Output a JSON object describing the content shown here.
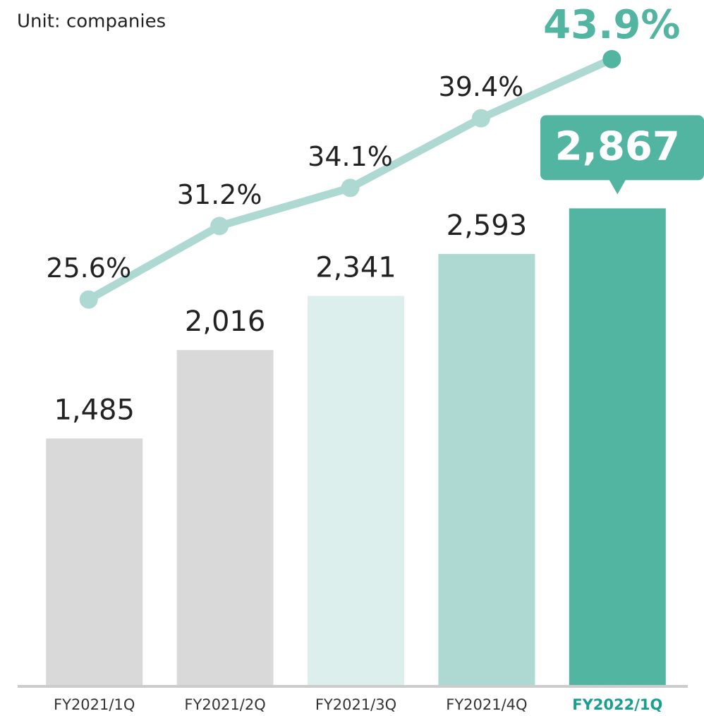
{
  "chart_data": {
    "type": "bar",
    "subtitle": "Unit: companies",
    "categories": [
      "FY2021/1Q",
      "FY2021/2Q",
      "FY2021/3Q",
      "FY2021/4Q",
      "FY2022/1Q"
    ],
    "ylim": [
      0,
      4000
    ],
    "y2lim": [
      -3.8,
      46.9
    ],
    "series": [
      {
        "type": "bar",
        "colors": [
          "#d9d9d9",
          "#d9d9d9",
          "#ddefec",
          "#aed9d3",
          "#52b5a2"
        ],
        "values": [
          1485,
          2016,
          2341,
          2593,
          2867
        ],
        "value_labels": [
          "1,485",
          "2,016",
          "2,341",
          "2,593",
          "2,867"
        ]
      },
      {
        "type": "line",
        "axis": "y2",
        "color": "#aed9d3",
        "highlight_color": "#52b5a2",
        "values": [
          25.6,
          31.2,
          34.1,
          39.4,
          43.9
        ],
        "value_labels": [
          "25.6%",
          "31.2%",
          "34.1%",
          "39.4%",
          "43.9%"
        ]
      }
    ]
  }
}
